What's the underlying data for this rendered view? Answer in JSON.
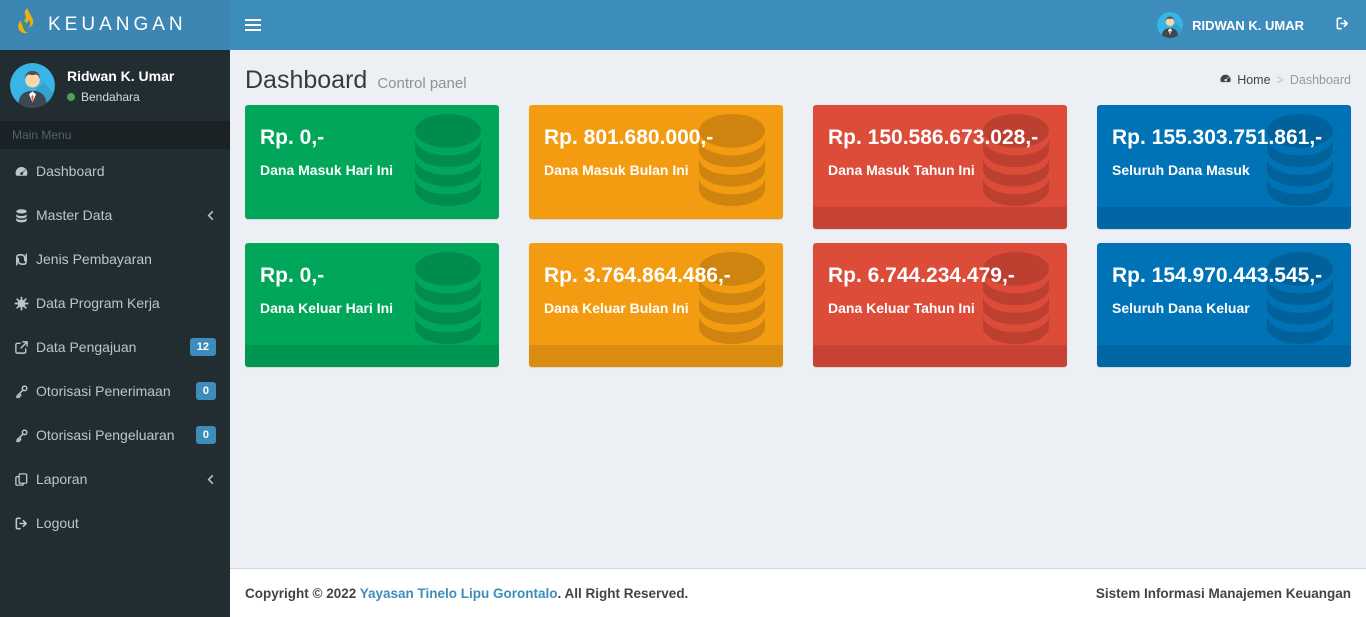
{
  "header": {
    "brand": "KEUANGAN",
    "user_name": "RIDWAN K. UMAR"
  },
  "sidebar": {
    "user": {
      "name": "Ridwan K. Umar",
      "role": "Bendahara"
    },
    "section_label": "Main Menu",
    "items": [
      {
        "label": "Dashboard",
        "icon": "gauge",
        "badge": null,
        "chevron": false
      },
      {
        "label": "Master Data",
        "icon": "database",
        "badge": null,
        "chevron": true
      },
      {
        "label": "Jenis Pembayaran",
        "icon": "shekel",
        "badge": null,
        "chevron": false
      },
      {
        "label": "Data Program Kerja",
        "icon": "gear",
        "badge": null,
        "chevron": false
      },
      {
        "label": "Data Pengajuan",
        "icon": "share-square",
        "badge": "12",
        "chevron": false
      },
      {
        "label": "Otorisasi Penerimaan",
        "icon": "key",
        "badge": "0",
        "chevron": false
      },
      {
        "label": "Otorisasi Pengeluaran",
        "icon": "key",
        "badge": "0",
        "chevron": false
      },
      {
        "label": "Laporan",
        "icon": "copy",
        "badge": null,
        "chevron": true
      },
      {
        "label": "Logout",
        "icon": "sign-out",
        "badge": null,
        "chevron": false
      }
    ]
  },
  "content": {
    "title": "Dashboard",
    "subtitle": "Control panel",
    "breadcrumb": {
      "home": "Home",
      "separator": ">",
      "current": "Dashboard"
    }
  },
  "boxes": [
    {
      "value": "Rp. 0,-",
      "label": "Dana Masuk Hari Ini",
      "color": "#00a65a",
      "footer": false
    },
    {
      "value": "Rp. 801.680.000,-",
      "label": "Dana Masuk Bulan Ini",
      "color": "#f39c12",
      "footer": false
    },
    {
      "value": "Rp. 150.586.673.028,-",
      "label": "Dana Masuk Tahun Ini",
      "color": "#dd4b39",
      "footer": true
    },
    {
      "value": "Rp. 155.303.751.861,-",
      "label": "Seluruh Dana Masuk",
      "color": "#0073b7",
      "footer": true
    },
    {
      "value": "Rp. 0,-",
      "label": "Dana Keluar Hari Ini",
      "color": "#00a65a",
      "footer": true
    },
    {
      "value": "Rp. 3.764.864.486,-",
      "label": "Dana Keluar Bulan Ini",
      "color": "#f39c12",
      "footer": true
    },
    {
      "value": "Rp. 6.744.234.479,-",
      "label": "Dana Keluar Tahun Ini",
      "color": "#dd4b39",
      "footer": true
    },
    {
      "value": "Rp. 154.970.443.545,-",
      "label": "Seluruh Dana Keluar",
      "color": "#0073b7",
      "footer": true
    }
  ],
  "footer": {
    "copyright_prefix": "Copyright © 2022 ",
    "org_link": "Yayasan Tinelo Lipu Gorontalo",
    "copyright_suffix": ". All Right Reserved.",
    "right_text": "Sistem Informasi Manajemen Keuangan"
  },
  "colors": {
    "navbar": "#3c8dbc",
    "logo_bg": "#3b86b3",
    "sidebar_bg": "#222d32",
    "sidebar_section_bg": "#1a2226",
    "badge": "#3c8dbc",
    "link": "#3c8dbc",
    "content_bg": "#ecf0f5",
    "box_green": "#00a65a",
    "box_yellow": "#f39c12",
    "box_red": "#dd4b39",
    "box_blue": "#0073b7",
    "status_online": "#4ea14e"
  }
}
